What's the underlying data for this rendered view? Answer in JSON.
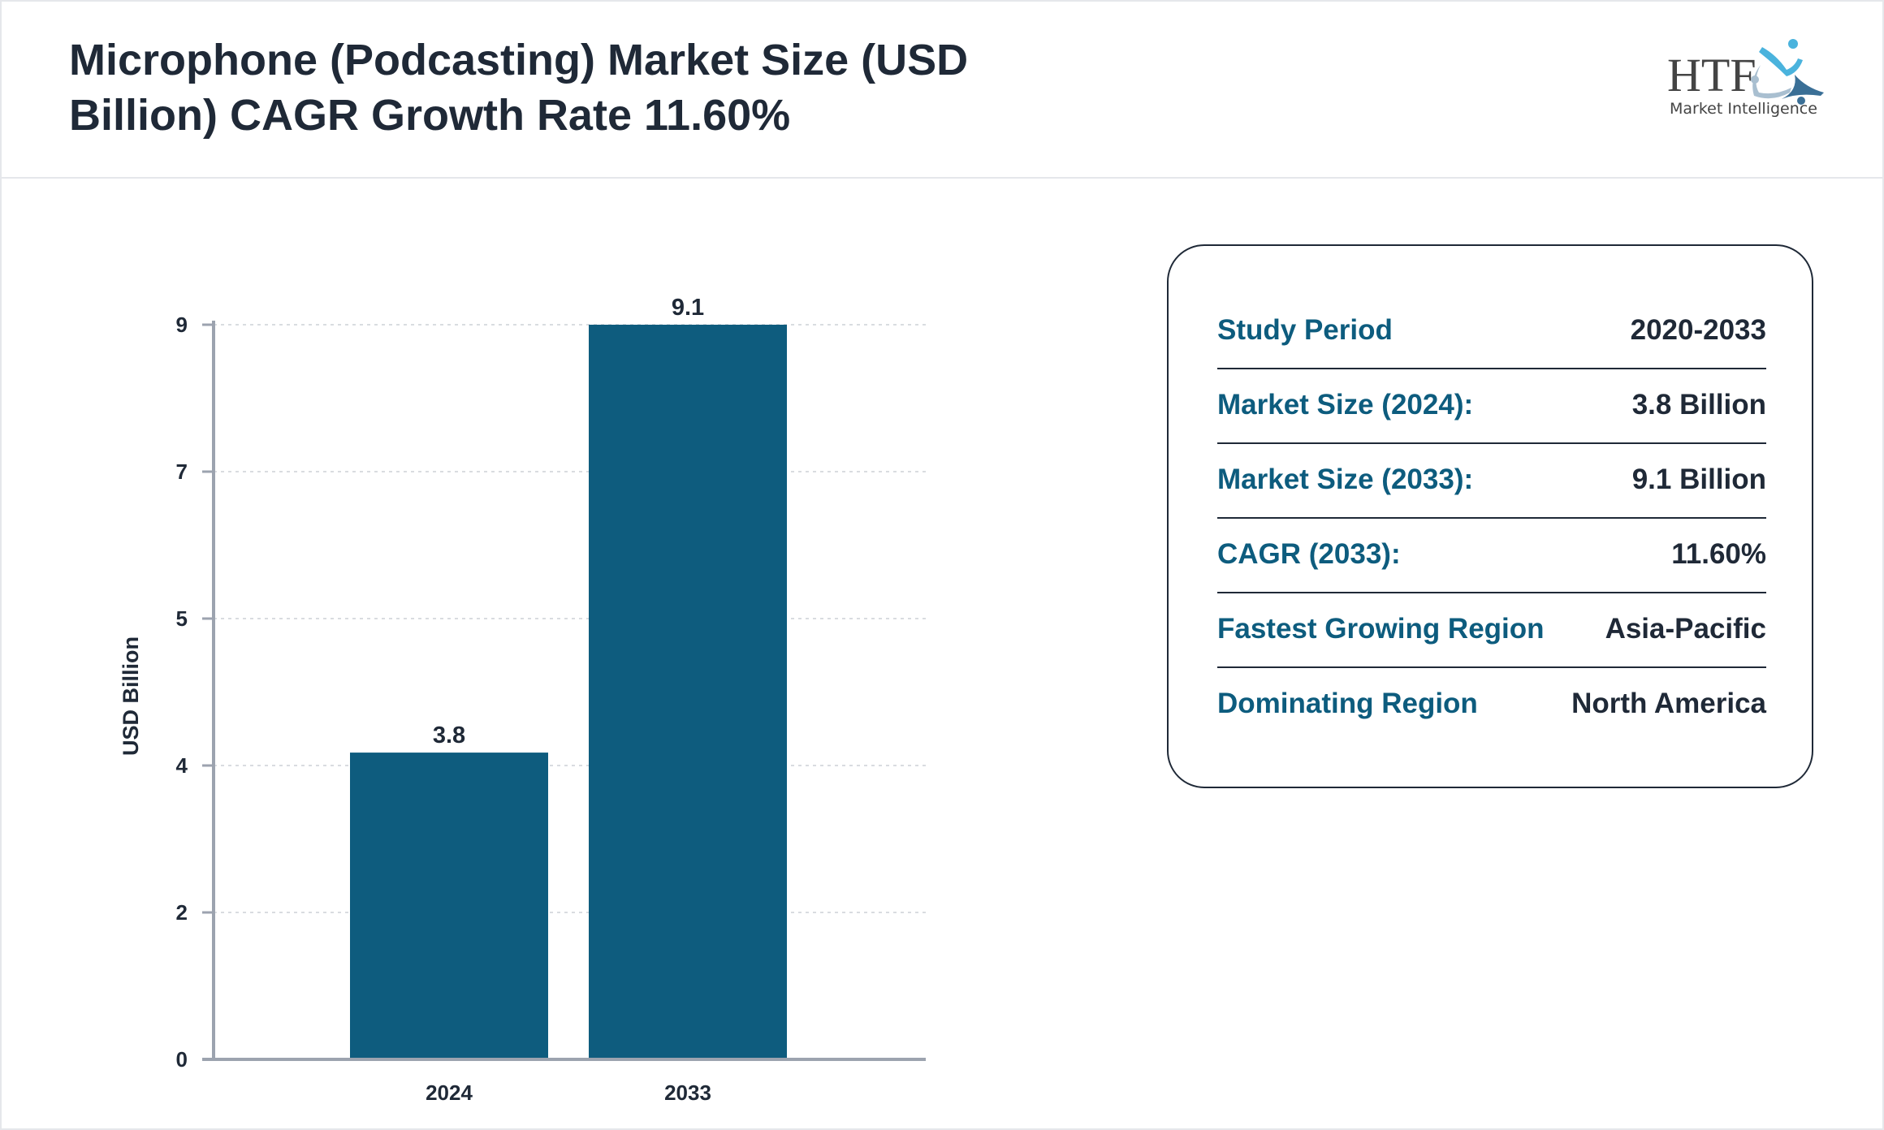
{
  "header": {
    "title": "Microphone (Podcasting) Market Size (USD Billion) CAGR Growth Rate 11.60%",
    "logo_text": "HTF Market Intelligence"
  },
  "chart_data": {
    "type": "bar",
    "categories": [
      "2024",
      "2033"
    ],
    "values": [
      3.8,
      9.1
    ],
    "data_labels": [
      "3.8",
      "9.1"
    ],
    "ylabel": "USD Billion",
    "ylim": [
      0,
      9.1
    ],
    "yticks": [
      0,
      1.82,
      3.64,
      5.46,
      7.28,
      9.1
    ],
    "ytick_labels": [
      "0",
      "2",
      "4",
      "5",
      "7",
      "9"
    ],
    "grid": true,
    "bar_color": "#0e5c7e"
  },
  "info": [
    {
      "label": "Study Period",
      "value": "2020-2033"
    },
    {
      "label": "Market Size (2024):",
      "value": "3.8 Billion"
    },
    {
      "label": "Market Size (2033):",
      "value": "9.1 Billion"
    },
    {
      "label": "CAGR (2033):",
      "value": "11.60%"
    },
    {
      "label": "Fastest Growing Region",
      "value": "Asia-Pacific"
    },
    {
      "label": "Dominating Region",
      "value": "North America"
    }
  ]
}
